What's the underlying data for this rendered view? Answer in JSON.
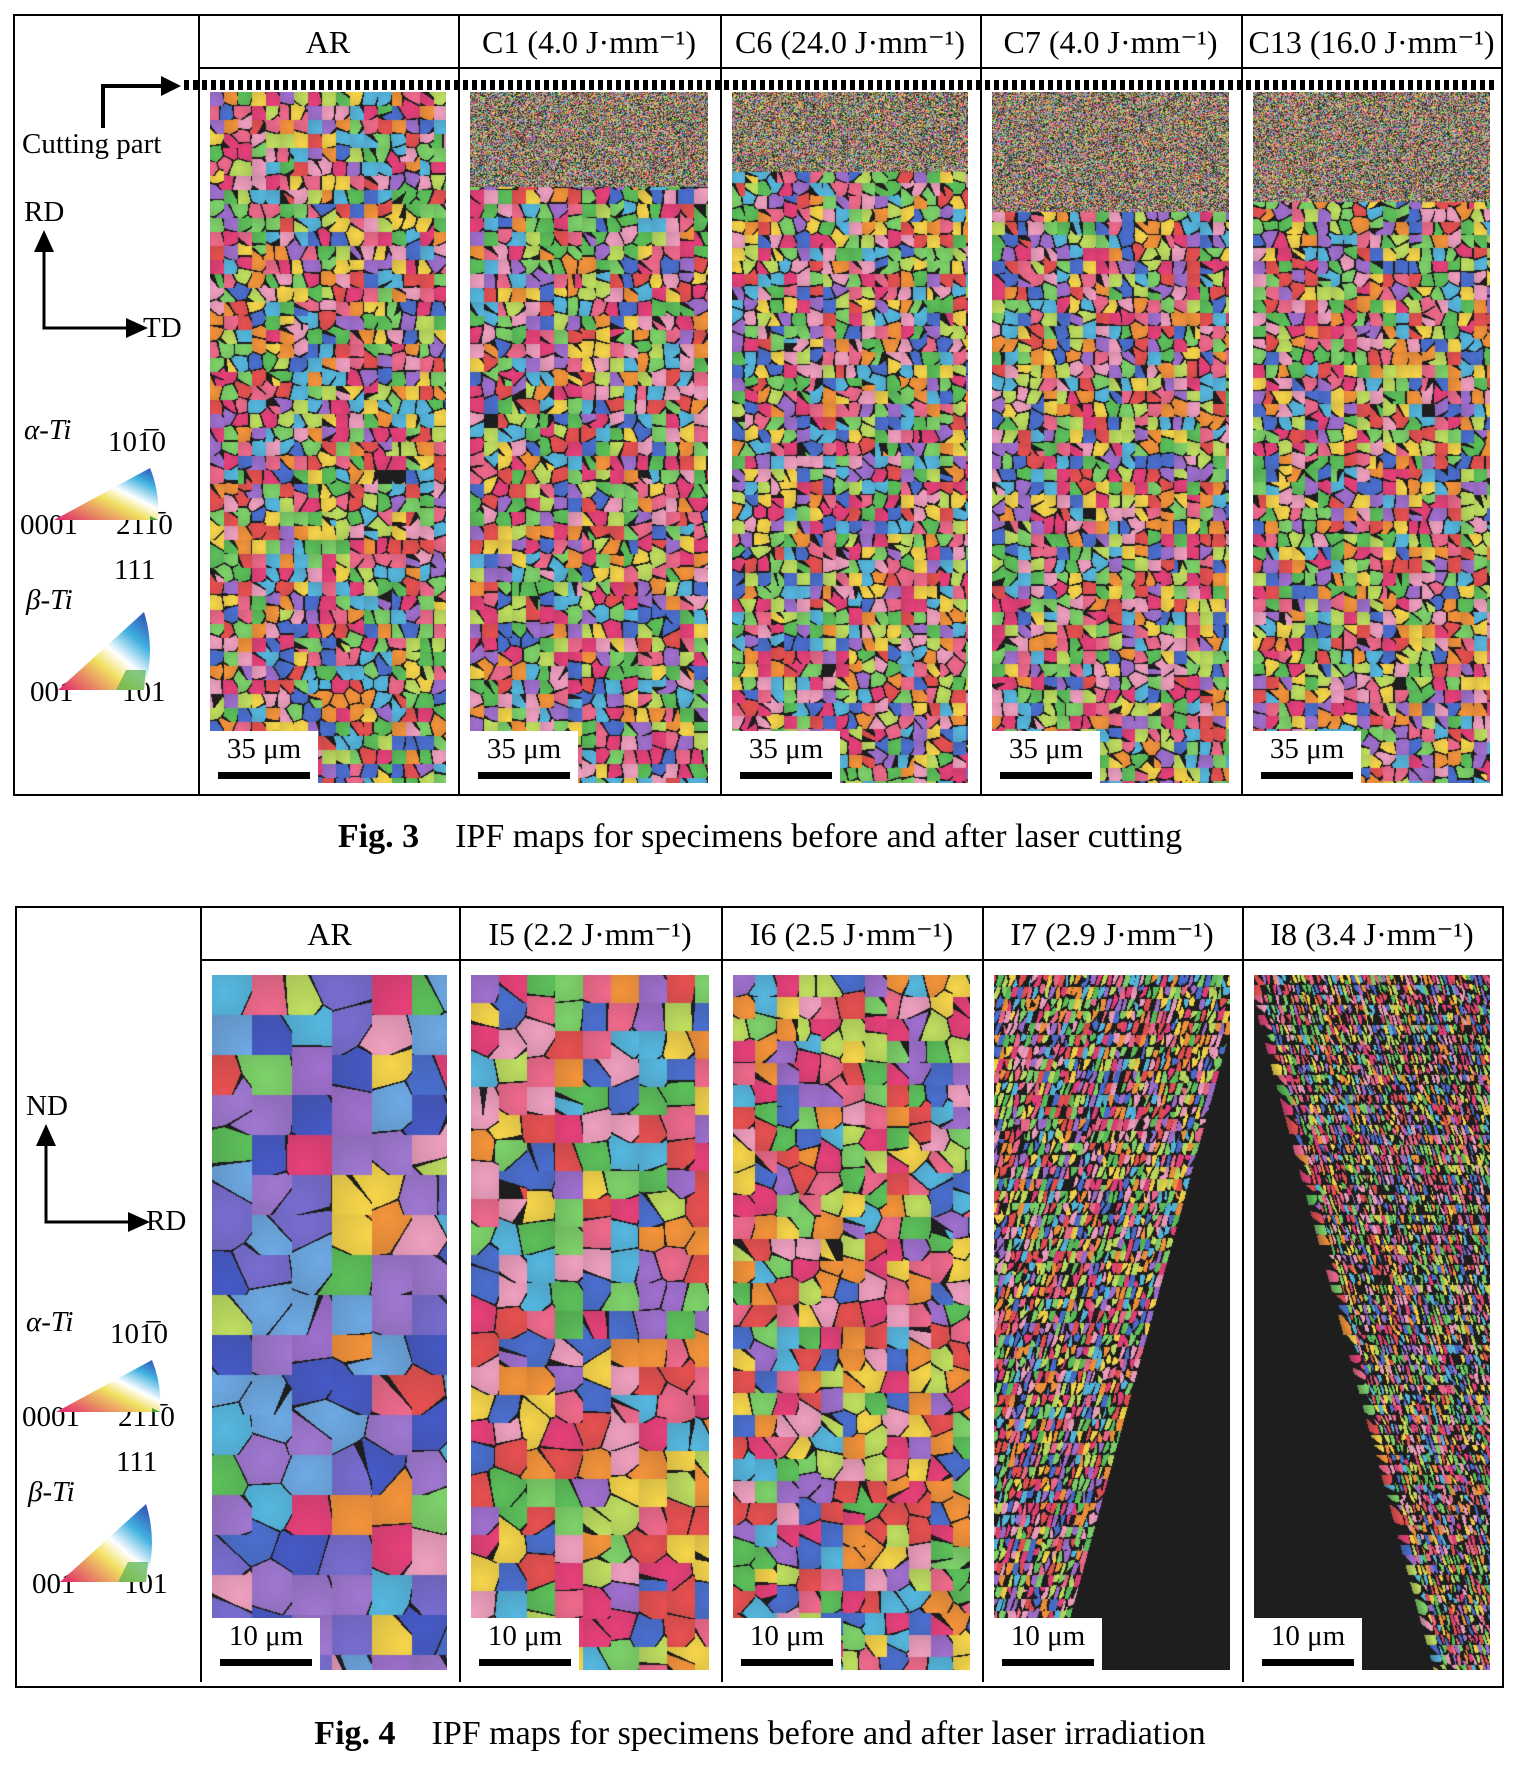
{
  "fig3": {
    "columns": [
      "AR",
      "C1 (4.0 J·mm⁻¹)",
      "C6 (24.0 J·mm⁻¹)",
      "C7 (4.0 J·mm⁻¹)",
      "C13 (16.0 J·mm⁻¹)"
    ],
    "scale_bar": "35 μm",
    "cutting_label": "Cutting part",
    "axis_v": "RD",
    "axis_h": "TD",
    "alpha": {
      "name": "α-Ti",
      "top": "101̅0",
      "left": "0001",
      "right": "21̅1̅0"
    },
    "beta": {
      "name": "β-Ti",
      "top": "111",
      "left": "001",
      "right": "101"
    },
    "caption_num": "Fig. 3",
    "caption": "IPF maps for specimens before and after laser cutting"
  },
  "fig4": {
    "columns": [
      "AR",
      "I5 (2.2 J·mm⁻¹)",
      "I6 (2.5 J·mm⁻¹)",
      "I7 (2.9 J·mm⁻¹)",
      "I8 (3.4 J·mm⁻¹)"
    ],
    "scale_bar": "10 μm",
    "axis_v": "ND",
    "axis_h": "RD",
    "alpha": {
      "name": "α-Ti",
      "top": "101̅0",
      "left": "0001",
      "right": "21̅1̅0"
    },
    "beta": {
      "name": "β-Ti",
      "top": "111",
      "left": "001",
      "right": "101"
    },
    "caption_num": "Fig. 4",
    "caption": "IPF maps for specimens before and after laser irradiation"
  },
  "colors": {
    "ipf_palette": [
      "#e8407a",
      "#f06a8c",
      "#5cc15a",
      "#7ed36a",
      "#f5943a",
      "#f7d64a",
      "#4a6fd0",
      "#56b8e0",
      "#a070d0",
      "#e85050",
      "#c0e060",
      "#f0a0c0"
    ]
  }
}
